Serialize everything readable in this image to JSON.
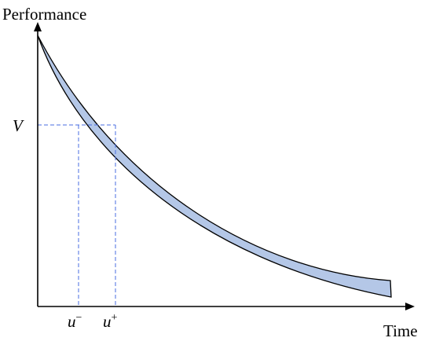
{
  "y_axis_label": "Performance",
  "x_axis_label": "Time",
  "threshold_label": "V",
  "u_minus": {
    "base": "u",
    "sup": "−"
  },
  "u_plus": {
    "base": "u",
    "sup": "+"
  },
  "colors": {
    "band_fill": "#b4c7e7",
    "outline": "#000000",
    "guide": "#4a6ee0"
  }
}
